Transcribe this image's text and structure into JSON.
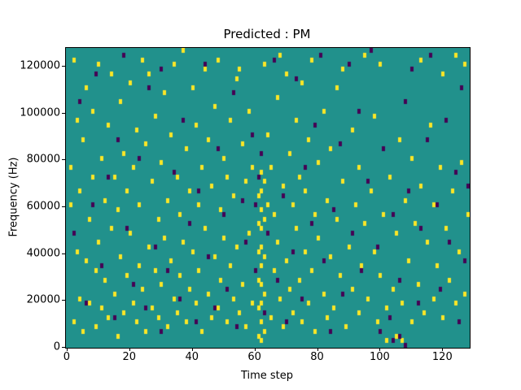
{
  "chart_data": {
    "type": "heatmap",
    "title": "Predicted : PM",
    "xlabel": "Time step",
    "ylabel": "Frequency (Hz)",
    "x_ticks": [
      0,
      20,
      40,
      60,
      80,
      100,
      120
    ],
    "y_ticks": [
      0,
      20000,
      40000,
      60000,
      80000,
      100000,
      120000
    ],
    "xlim": [
      0,
      129
    ],
    "ylim": [
      0,
      128000
    ],
    "legend": "none",
    "grid": {
      "time_steps": 129,
      "freq_bins": 64,
      "freq_bin_hz": 2000
    },
    "colors": {
      "background": "#21918c",
      "yellow": "#fde725",
      "purple": "#440154"
    },
    "cells": {
      "yellow": [
        [
          1,
          30
        ],
        [
          1,
          38
        ],
        [
          2,
          5
        ],
        [
          2,
          61
        ],
        [
          3,
          20
        ],
        [
          3,
          48
        ],
        [
          4,
          10
        ],
        [
          4,
          33
        ],
        [
          5,
          3
        ],
        [
          5,
          44
        ],
        [
          6,
          18
        ],
        [
          6,
          55
        ],
        [
          7,
          9
        ],
        [
          7,
          27
        ],
        [
          8,
          36
        ],
        [
          8,
          50
        ],
        [
          9,
          4
        ],
        [
          9,
          16
        ],
        [
          10,
          22
        ],
        [
          10,
          60
        ],
        [
          11,
          8
        ],
        [
          11,
          40
        ],
        [
          12,
          14
        ],
        [
          12,
          31
        ],
        [
          13,
          6
        ],
        [
          13,
          47
        ],
        [
          14,
          25
        ],
        [
          14,
          58
        ],
        [
          15,
          11
        ],
        [
          15,
          36
        ],
        [
          16,
          2
        ],
        [
          16,
          29
        ],
        [
          17,
          19
        ],
        [
          17,
          52
        ],
        [
          18,
          7
        ],
        [
          18,
          41
        ],
        [
          19,
          15
        ],
        [
          19,
          33
        ],
        [
          20,
          24
        ],
        [
          20,
          56
        ],
        [
          21,
          9
        ],
        [
          21,
          38
        ],
        [
          22,
          5
        ],
        [
          22,
          46
        ],
        [
          23,
          17
        ],
        [
          23,
          30
        ],
        [
          24,
          12
        ],
        [
          24,
          61
        ],
        [
          25,
          3
        ],
        [
          25,
          43
        ],
        [
          26,
          21
        ],
        [
          26,
          58
        ],
        [
          27,
          8
        ],
        [
          27,
          35
        ],
        [
          28,
          16
        ],
        [
          28,
          49
        ],
        [
          29,
          6
        ],
        [
          29,
          27
        ],
        [
          30,
          13
        ],
        [
          30,
          39
        ],
        [
          31,
          23
        ],
        [
          31,
          54
        ],
        [
          32,
          4
        ],
        [
          32,
          31
        ],
        [
          33,
          18
        ],
        [
          33,
          45
        ],
        [
          34,
          10
        ],
        [
          34,
          60
        ],
        [
          35,
          7
        ],
        [
          35,
          36
        ],
        [
          36,
          15
        ],
        [
          36,
          28
        ],
        [
          37,
          22
        ],
        [
          37,
          63
        ],
        [
          38,
          5
        ],
        [
          38,
          42
        ],
        [
          39,
          12
        ],
        [
          39,
          33
        ],
        [
          40,
          20
        ],
        [
          40,
          55
        ],
        [
          41,
          9
        ],
        [
          41,
          47
        ],
        [
          42,
          16
        ],
        [
          42,
          30
        ],
        [
          43,
          3
        ],
        [
          43,
          38
        ],
        [
          44,
          25
        ],
        [
          44,
          59
        ],
        [
          45,
          11
        ],
        [
          45,
          44
        ],
        [
          46,
          6
        ],
        [
          46,
          34
        ],
        [
          47,
          19
        ],
        [
          47,
          51
        ],
        [
          48,
          8
        ],
        [
          48,
          61
        ],
        [
          49,
          14
        ],
        [
          49,
          29
        ],
        [
          50,
          23
        ],
        [
          50,
          40
        ],
        [
          51,
          5
        ],
        [
          51,
          36
        ],
        [
          52,
          17
        ],
        [
          52,
          48
        ],
        [
          53,
          10
        ],
        [
          53,
          32
        ],
        [
          54,
          21
        ],
        [
          54,
          57
        ],
        [
          55,
          7
        ],
        [
          55,
          59
        ],
        [
          56,
          13
        ],
        [
          56,
          43
        ],
        [
          57,
          4
        ],
        [
          57,
          35
        ],
        [
          58,
          24
        ],
        [
          58,
          50
        ],
        [
          59,
          9
        ],
        [
          59,
          38
        ],
        [
          61,
          2
        ],
        [
          61,
          8
        ],
        [
          61,
          14
        ],
        [
          61,
          20
        ],
        [
          61,
          26
        ],
        [
          61,
          32
        ],
        [
          62,
          1
        ],
        [
          62,
          5
        ],
        [
          62,
          9
        ],
        [
          62,
          13
        ],
        [
          62,
          17
        ],
        [
          62,
          21
        ],
        [
          62,
          25
        ],
        [
          62,
          29
        ],
        [
          62,
          33
        ],
        [
          62,
          37
        ],
        [
          63,
          3
        ],
        [
          63,
          11
        ],
        [
          63,
          19
        ],
        [
          63,
          27
        ],
        [
          63,
          35
        ],
        [
          63,
          60
        ],
        [
          64,
          30
        ],
        [
          64,
          45
        ],
        [
          65,
          6
        ],
        [
          65,
          38
        ],
        [
          66,
          16
        ],
        [
          66,
          28
        ],
        [
          67,
          22
        ],
        [
          67,
          53
        ],
        [
          68,
          10
        ],
        [
          68,
          62
        ],
        [
          69,
          4
        ],
        [
          69,
          34
        ],
        [
          70,
          18
        ],
        [
          70,
          58
        ],
        [
          71,
          12
        ],
        [
          71,
          41
        ],
        [
          72,
          7
        ],
        [
          72,
          30
        ],
        [
          73,
          25
        ],
        [
          73,
          48
        ],
        [
          74,
          14
        ],
        [
          74,
          36
        ],
        [
          75,
          5
        ],
        [
          75,
          56
        ],
        [
          76,
          20
        ],
        [
          76,
          33
        ],
        [
          77,
          9
        ],
        [
          77,
          44
        ],
        [
          78,
          16
        ],
        [
          78,
          61
        ],
        [
          79,
          3
        ],
        [
          79,
          28
        ],
        [
          80,
          23
        ],
        [
          80,
          39
        ],
        [
          82,
          11
        ],
        [
          82,
          50
        ],
        [
          83,
          6
        ],
        [
          83,
          31
        ],
        [
          84,
          19
        ],
        [
          84,
          42
        ],
        [
          85,
          8
        ],
        [
          86,
          27
        ],
        [
          86,
          55
        ],
        [
          87,
          15
        ],
        [
          88,
          35
        ],
        [
          88,
          59
        ],
        [
          89,
          4
        ],
        [
          90,
          21
        ],
        [
          91,
          12
        ],
        [
          91,
          46
        ],
        [
          92,
          30
        ],
        [
          93,
          7
        ],
        [
          93,
          38
        ],
        [
          94,
          17
        ],
        [
          95,
          26
        ],
        [
          95,
          62
        ],
        [
          96,
          10
        ],
        [
          97,
          33
        ],
        [
          98,
          20
        ],
        [
          98,
          49
        ],
        [
          99,
          5
        ],
        [
          100,
          15
        ],
        [
          100,
          60
        ],
        [
          101,
          28
        ],
        [
          102,
          8
        ],
        [
          102,
          1
        ],
        [
          103,
          36
        ],
        [
          104,
          12
        ],
        [
          105,
          24
        ],
        [
          105,
          2
        ],
        [
          106,
          44
        ],
        [
          107,
          9
        ],
        [
          107,
          1
        ],
        [
          108,
          31
        ],
        [
          109,
          18
        ],
        [
          110,
          5
        ],
        [
          110,
          40
        ],
        [
          111,
          26
        ],
        [
          112,
          13
        ],
        [
          113,
          34
        ],
        [
          113,
          61
        ],
        [
          114,
          7
        ],
        [
          115,
          22
        ],
        [
          116,
          47
        ],
        [
          117,
          10
        ],
        [
          117,
          30
        ],
        [
          118,
          17
        ],
        [
          119,
          38
        ],
        [
          120,
          6
        ],
        [
          120,
          58
        ],
        [
          121,
          25
        ],
        [
          122,
          14
        ],
        [
          123,
          33
        ],
        [
          124,
          9
        ],
        [
          124,
          62
        ],
        [
          125,
          20
        ],
        [
          126,
          39
        ],
        [
          127,
          11
        ],
        [
          127,
          60
        ],
        [
          128,
          28
        ]
      ],
      "purple": [
        [
          2,
          24
        ],
        [
          4,
          52
        ],
        [
          6,
          9
        ],
        [
          8,
          30
        ],
        [
          9,
          58
        ],
        [
          11,
          17
        ],
        [
          13,
          36
        ],
        [
          15,
          6
        ],
        [
          16,
          44
        ],
        [
          18,
          62
        ],
        [
          19,
          25
        ],
        [
          21,
          13
        ],
        [
          23,
          40
        ],
        [
          25,
          8
        ],
        [
          26,
          55
        ],
        [
          28,
          21
        ],
        [
          30,
          59
        ],
        [
          30,
          3
        ],
        [
          32,
          16
        ],
        [
          34,
          37
        ],
        [
          36,
          10
        ],
        [
          37,
          48
        ],
        [
          39,
          26
        ],
        [
          41,
          5
        ],
        [
          42,
          33
        ],
        [
          44,
          60
        ],
        [
          45,
          19
        ],
        [
          47,
          8
        ],
        [
          48,
          42
        ],
        [
          50,
          28
        ],
        [
          51,
          12
        ],
        [
          53,
          54
        ],
        [
          54,
          4
        ],
        [
          56,
          31
        ],
        [
          57,
          22
        ],
        [
          59,
          45
        ],
        [
          60,
          30
        ],
        [
          60,
          16
        ],
        [
          61,
          36
        ],
        [
          62,
          41
        ],
        [
          63,
          7
        ],
        [
          64,
          24
        ],
        [
          66,
          61
        ],
        [
          67,
          14
        ],
        [
          69,
          32
        ],
        [
          70,
          5
        ],
        [
          72,
          20
        ],
        [
          73,
          57
        ],
        [
          75,
          10
        ],
        [
          76,
          38
        ],
        [
          78,
          26
        ],
        [
          79,
          47
        ],
        [
          81,
          62
        ],
        [
          82,
          18
        ],
        [
          84,
          3
        ],
        [
          85,
          29
        ],
        [
          87,
          43
        ],
        [
          88,
          11
        ],
        [
          90,
          60
        ],
        [
          91,
          24
        ],
        [
          93,
          50
        ],
        [
          94,
          16
        ],
        [
          96,
          35
        ],
        [
          97,
          63
        ],
        [
          99,
          21
        ],
        [
          100,
          3
        ],
        [
          101,
          42
        ],
        [
          103,
          6
        ],
        [
          104,
          28
        ],
        [
          104,
          1
        ],
        [
          106,
          14
        ],
        [
          106,
          2
        ],
        [
          108,
          52
        ],
        [
          108,
          0
        ],
        [
          109,
          33
        ],
        [
          110,
          59
        ],
        [
          112,
          9
        ],
        [
          113,
          25
        ],
        [
          115,
          44
        ],
        [
          116,
          62
        ],
        [
          118,
          30
        ],
        [
          119,
          12
        ],
        [
          121,
          48
        ],
        [
          122,
          22
        ],
        [
          124,
          37
        ],
        [
          125,
          5
        ],
        [
          126,
          55
        ],
        [
          127,
          18
        ],
        [
          128,
          34
        ]
      ]
    }
  }
}
